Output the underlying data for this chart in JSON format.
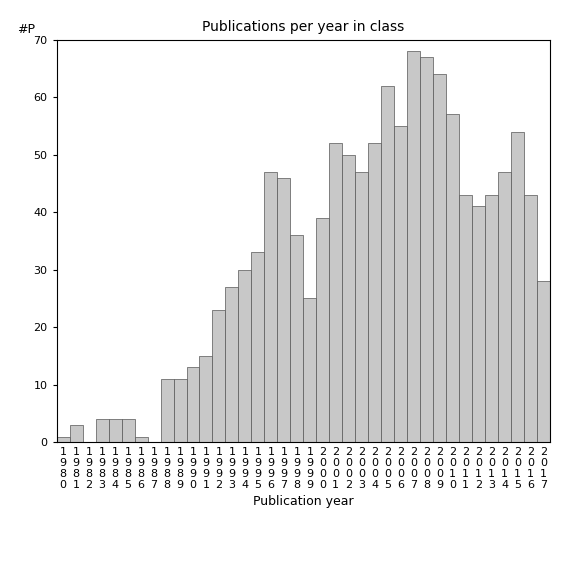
{
  "title": "Publications per year in class",
  "xlabel": "Publication year",
  "ylabel": "#P",
  "ylim": [
    0,
    70
  ],
  "yticks": [
    0,
    10,
    20,
    30,
    40,
    50,
    60,
    70
  ],
  "bar_color": "#c8c8c8",
  "bar_edgecolor": "#555555",
  "background_color": "#ffffff",
  "years": [
    "1980",
    "1981",
    "1982",
    "1983",
    "1984",
    "1985",
    "1986",
    "1987",
    "1988",
    "1989",
    "1990",
    "1991",
    "1992",
    "1993",
    "1994",
    "1995",
    "1996",
    "1997",
    "1998",
    "1999",
    "2000",
    "2001",
    "2002",
    "2003",
    "2004",
    "2005",
    "2006",
    "2007",
    "2008",
    "2009",
    "2010",
    "2011",
    "2012",
    "2013",
    "2014",
    "2015",
    "2016",
    "2017"
  ],
  "values": [
    1,
    3,
    0,
    4,
    4,
    4,
    1,
    0,
    11,
    11,
    13,
    15,
    23,
    27,
    30,
    33,
    47,
    46,
    36,
    25,
    39,
    52,
    50,
    47,
    52,
    62,
    55,
    68,
    67,
    64,
    57,
    43,
    41,
    43,
    47,
    54,
    43,
    28
  ],
  "tick_fontsize": 8,
  "title_fontsize": 10,
  "label_fontsize": 9
}
